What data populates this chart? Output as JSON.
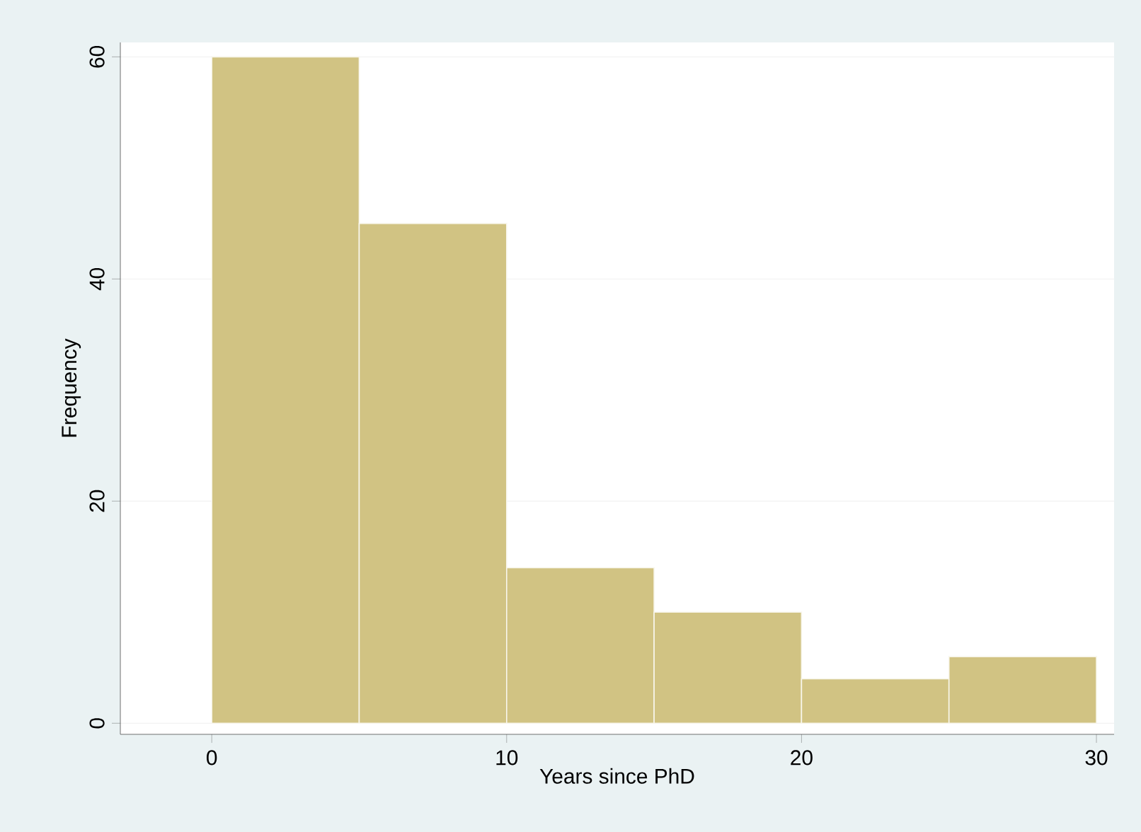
{
  "chart_data": {
    "type": "histogram",
    "xlabel": "Years since PhD",
    "ylabel": "Frequency",
    "bins": [
      0,
      5,
      10,
      15,
      20,
      25,
      30
    ],
    "values": [
      60,
      45,
      14,
      10,
      4,
      6
    ],
    "color": "#d1c383",
    "xlim": [
      -3.1,
      30.6
    ],
    "ylim": [
      -1,
      61.3
    ],
    "xticks": [
      0,
      10,
      20,
      30
    ],
    "yticks": [
      0,
      20,
      40,
      60
    ],
    "grid": "y"
  }
}
